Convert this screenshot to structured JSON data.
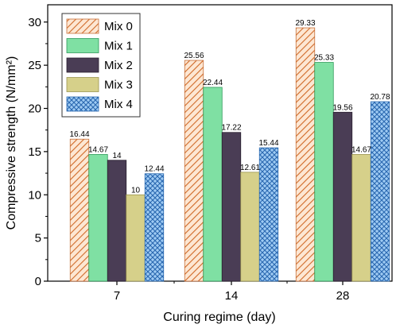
{
  "chart_data": {
    "type": "bar",
    "title": "",
    "xlabel": "Curing regime (day)",
    "ylabel": "Compressive strength (N/mm²)",
    "categories": [
      "7",
      "14",
      "28"
    ],
    "ylim": [
      0,
      32
    ],
    "yticks": [
      "0",
      "5",
      "10",
      "15",
      "20",
      "25",
      "30"
    ],
    "grid": false,
    "legend_position": "top-left",
    "series": [
      {
        "name": "Mix 0",
        "values": [
          16.44,
          25.56,
          29.33
        ],
        "labels": [
          "16.44",
          "25.56",
          "29.33"
        ],
        "color": "#f7c9a4",
        "stroke": "#c8703a",
        "pattern": "diagonal-hatch"
      },
      {
        "name": "Mix 1",
        "values": [
          14.67,
          22.44,
          25.33
        ],
        "labels": [
          "14.67",
          "22.44",
          "25.33"
        ],
        "color": "#7fe0a3",
        "stroke": "#2f9a5a",
        "pattern": "solid"
      },
      {
        "name": "Mix 2",
        "values": [
          14,
          17.22,
          19.56
        ],
        "labels": [
          "14",
          "17.22",
          "19.56"
        ],
        "color": "#4a3d55",
        "stroke": "#2a2030",
        "pattern": "solid"
      },
      {
        "name": "Mix 3",
        "values": [
          10,
          12.61,
          14.67
        ],
        "labels": [
          "10",
          "12.61",
          "14.67"
        ],
        "color": "#d6d08a",
        "stroke": "#9a9550",
        "pattern": "solid"
      },
      {
        "name": "Mix 4",
        "values": [
          12.44,
          15.44,
          20.78
        ],
        "labels": [
          "12.44",
          "15.44",
          "20.78"
        ],
        "color": "#7fb6ea",
        "stroke": "#2a68b0",
        "pattern": "crosshatch"
      }
    ]
  }
}
